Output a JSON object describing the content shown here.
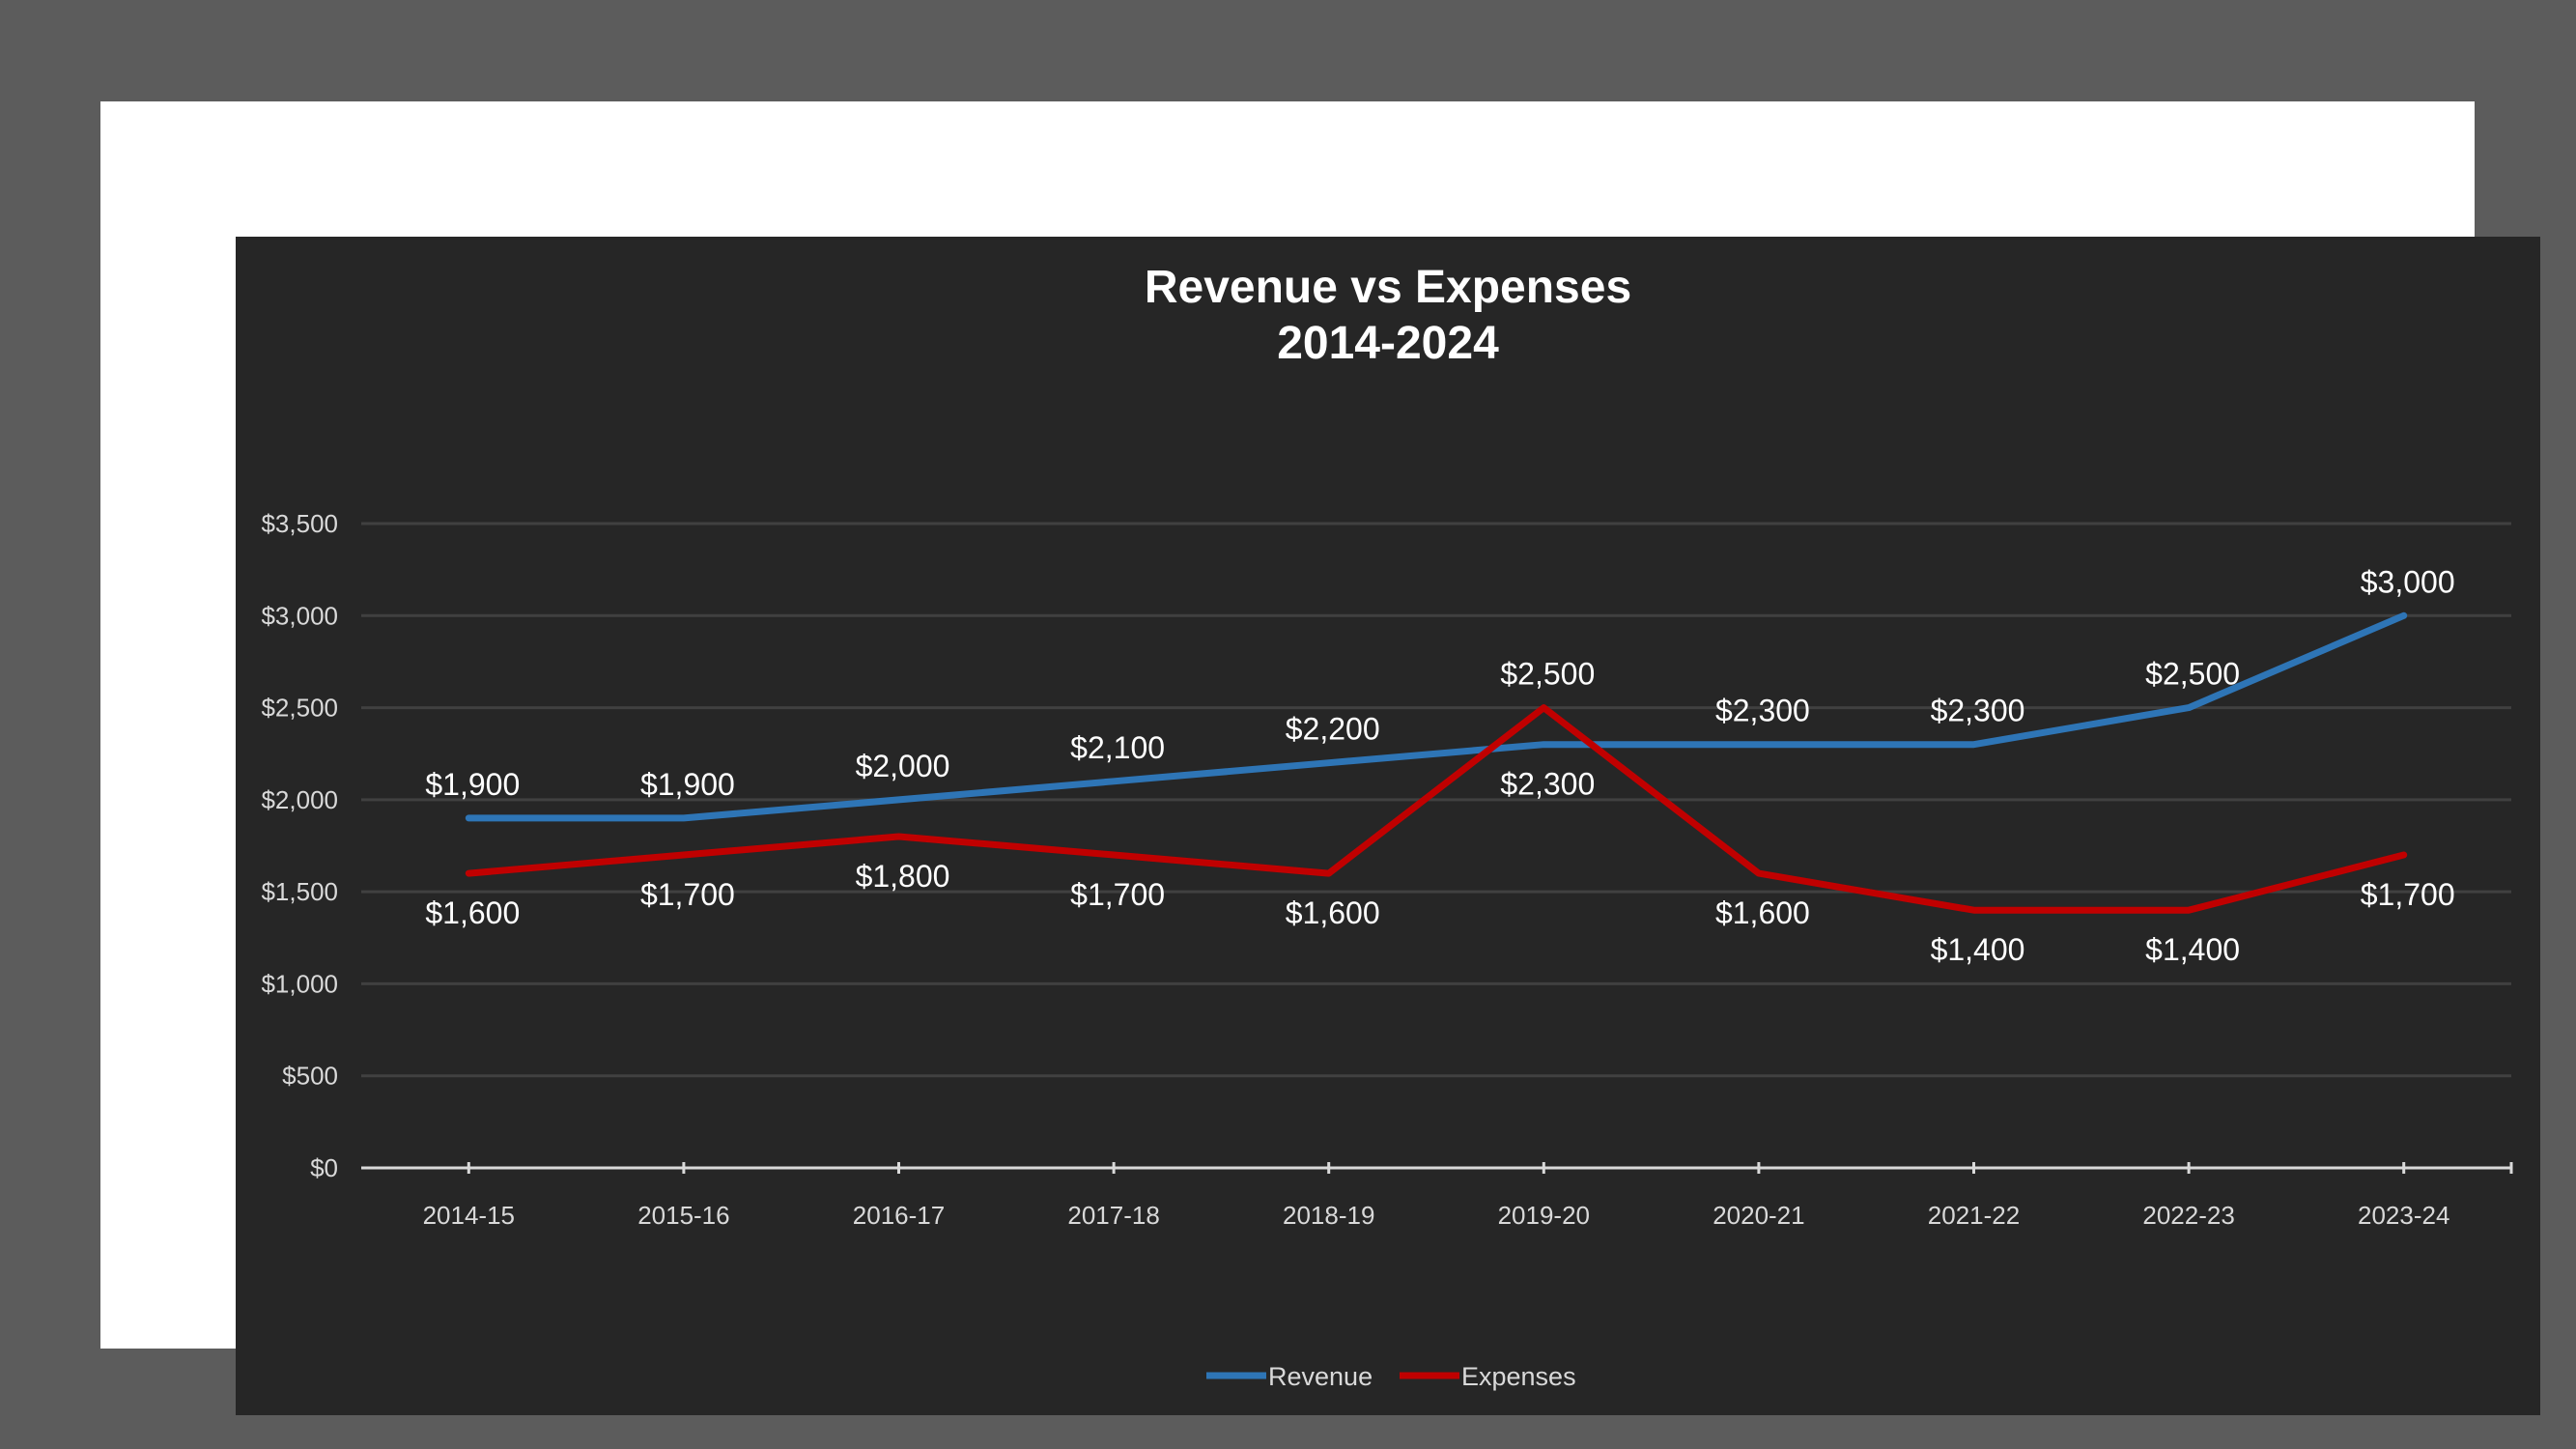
{
  "chart_data": {
    "type": "line",
    "title": "Revenue vs Expenses",
    "subtitle": "2014-2024",
    "categories": [
      "2014-15",
      "2015-16",
      "2016-17",
      "2017-18",
      "2018-19",
      "2019-20",
      "2020-21",
      "2021-22",
      "2022-23",
      "2023-24"
    ],
    "series": [
      {
        "name": "Revenue",
        "color": "#2e75b6",
        "values": [
          1900,
          1900,
          2000,
          2100,
          2200,
          2300,
          2300,
          2300,
          2500,
          3000
        ],
        "labels": [
          "$1,900",
          "$1,900",
          "$2,000",
          "$2,100",
          "$2,200",
          "$2,300",
          "$2,300",
          "$2,300",
          "$2,500",
          "$3,000"
        ],
        "label_position": [
          "above",
          "above",
          "above",
          "above",
          "above",
          "below",
          "above",
          "above",
          "above",
          "above"
        ]
      },
      {
        "name": "Expenses",
        "color": "#c00000",
        "values": [
          1600,
          1700,
          1800,
          1700,
          1600,
          2500,
          1600,
          1400,
          1400,
          1700
        ],
        "labels": [
          "$1,600",
          "$1,700",
          "$1,800",
          "$1,700",
          "$1,600",
          "$2,500",
          "$1,600",
          "$1,400",
          "$1,400",
          "$1,700"
        ],
        "label_position": [
          "below",
          "below",
          "below",
          "below",
          "below",
          "above",
          "below",
          "below",
          "below",
          "below"
        ]
      }
    ],
    "yticks": [
      0,
      500,
      1000,
      1500,
      2000,
      2500,
      3000,
      3500
    ],
    "ytick_labels": [
      "$0",
      "$500",
      "$1,000",
      "$1,500",
      "$2,000",
      "$2,500",
      "$3,000",
      "$3,500"
    ],
    "ylim": [
      0,
      3500
    ],
    "grid": true,
    "legend": "bottom",
    "colors": {
      "background": "#262626",
      "frame": "#ffffff",
      "outer": "#5c5c5c",
      "gridline": "#404040",
      "axis": "#d9d9d9"
    }
  }
}
